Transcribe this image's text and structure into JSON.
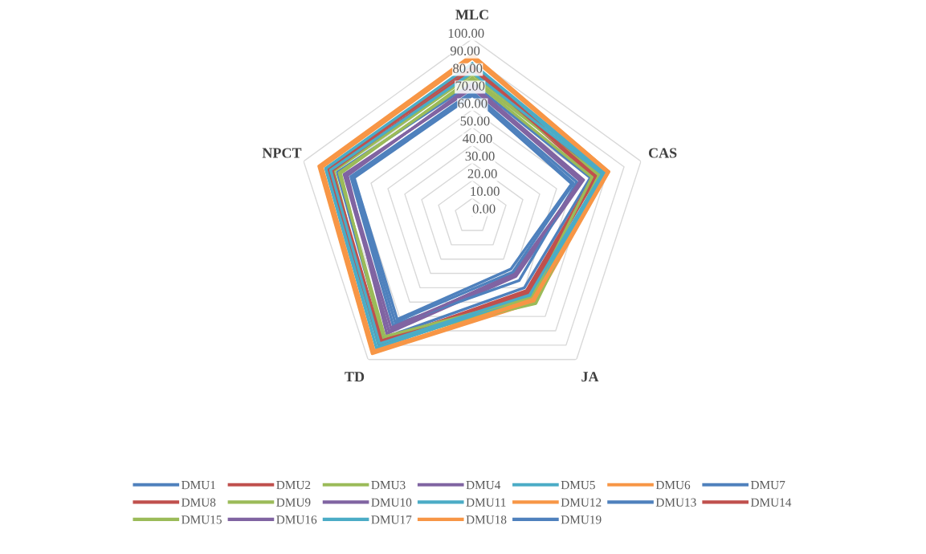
{
  "chart_data": {
    "type": "radar",
    "categories": [
      "MLC",
      "CAS",
      "JA",
      "TD",
      "NPCT"
    ],
    "ylim": [
      0,
      100
    ],
    "yticks": [
      {
        "value": 0,
        "label": "0.00"
      },
      {
        "value": 10,
        "label": "10.00"
      },
      {
        "value": 20,
        "label": "20.00"
      },
      {
        "value": 30,
        "label": "30.00"
      },
      {
        "value": 40,
        "label": "40.00"
      },
      {
        "value": 50,
        "label": "50.00"
      },
      {
        "value": 60,
        "label": "60.00"
      },
      {
        "value": 70,
        "label": "70.00"
      },
      {
        "value": 80,
        "label": "80.00"
      },
      {
        "value": 90,
        "label": "90.00"
      },
      {
        "value": 100,
        "label": "100.00"
      }
    ],
    "grid": true,
    "legend": "bottom",
    "marker": "none",
    "line_style": "solid",
    "series": [
      {
        "name": "DMU1",
        "color": "#4f81bd",
        "values": [
          75,
          70,
          50,
          85,
          80
        ]
      },
      {
        "name": "DMU2",
        "color": "#c0504d",
        "values": [
          82,
          72,
          52,
          88,
          84
        ]
      },
      {
        "name": "DMU3",
        "color": "#9bbb59",
        "values": [
          80,
          76,
          58,
          90,
          82
        ]
      },
      {
        "name": "DMU4",
        "color": "#8064a2",
        "values": [
          72,
          65,
          40,
          80,
          76
        ]
      },
      {
        "name": "DMU5",
        "color": "#4bacc6",
        "values": [
          84,
          78,
          55,
          90,
          86
        ]
      },
      {
        "name": "DMU6",
        "color": "#f79646",
        "values": [
          91,
          81,
          60,
          96,
          91
        ]
      },
      {
        "name": "DMU7",
        "color": "#4f81bd",
        "values": [
          68,
          59,
          37,
          72,
          70
        ]
      },
      {
        "name": "DMU8",
        "color": "#c0504d",
        "values": [
          85,
          74,
          54,
          89,
          85
        ]
      },
      {
        "name": "DMU9",
        "color": "#9bbb59",
        "values": [
          78,
          75,
          61,
          86,
          78
        ]
      },
      {
        "name": "DMU10",
        "color": "#8064a2",
        "values": [
          74,
          66,
          42,
          82,
          74
        ]
      },
      {
        "name": "DMU11",
        "color": "#4bacc6",
        "values": [
          86,
          79,
          56,
          92,
          87
        ]
      },
      {
        "name": "DMU12",
        "color": "#f79646",
        "values": [
          89,
          80,
          59,
          94,
          89
        ]
      },
      {
        "name": "DMU13",
        "color": "#4f81bd",
        "values": [
          70,
          62,
          45,
          76,
          72
        ]
      },
      {
        "name": "DMU14",
        "color": "#c0504d",
        "values": [
          83,
          73,
          53,
          87,
          83
        ]
      },
      {
        "name": "DMU15",
        "color": "#9bbb59",
        "values": [
          77,
          71,
          57,
          84,
          79
        ]
      },
      {
        "name": "DMU16",
        "color": "#8064a2",
        "values": [
          73,
          64,
          41,
          78,
          75
        ]
      },
      {
        "name": "DMU17",
        "color": "#4bacc6",
        "values": [
          81,
          77,
          55,
          89,
          84
        ]
      },
      {
        "name": "DMU18",
        "color": "#f79646",
        "values": [
          90,
          81,
          58,
          95,
          90
        ]
      },
      {
        "name": "DMU19",
        "color": "#4f81bd",
        "values": [
          69,
          60,
          39,
          74,
          71
        ]
      }
    ]
  }
}
